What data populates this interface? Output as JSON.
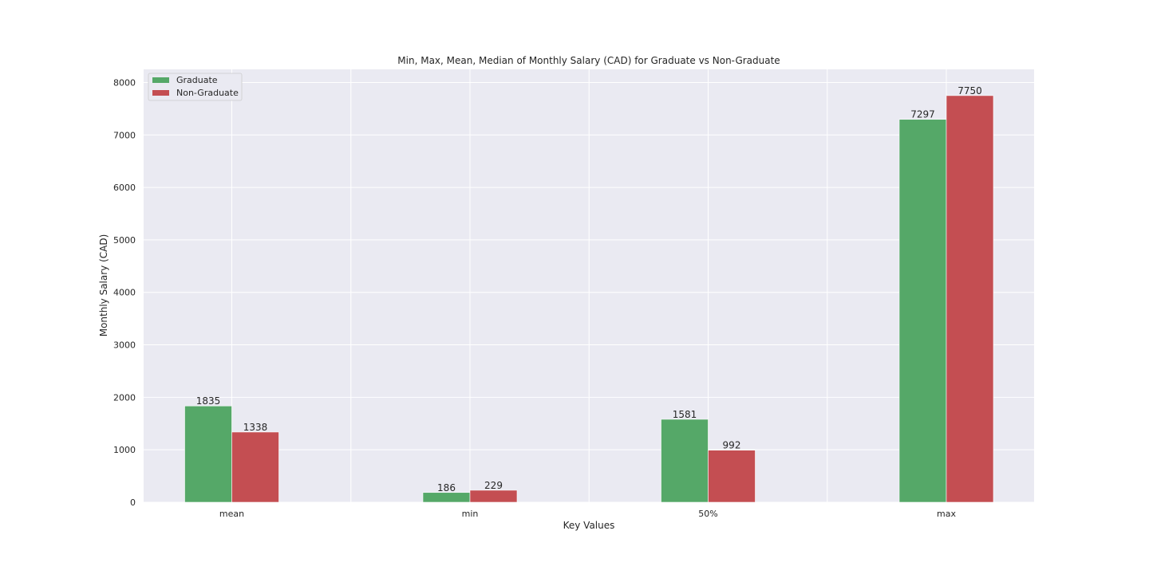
{
  "chart_data": {
    "type": "bar",
    "title": "Min, Max, Mean, Median of Monthly Salary (CAD) for Graduate vs Non-Graduate",
    "xlabel": "Key Values",
    "ylabel": "Monthly Salary (CAD)",
    "categories": [
      "mean",
      "min",
      "50%",
      "max"
    ],
    "series": [
      {
        "name": "Graduate",
        "values": [
          1835,
          186,
          1581,
          7297
        ],
        "color": "#55a868"
      },
      {
        "name": "Non-Graduate",
        "values": [
          1338,
          229,
          992,
          7750
        ],
        "color": "#c44e52"
      }
    ],
    "ylim": [
      0,
      8250
    ],
    "yticks": [
      0,
      1000,
      2000,
      3000,
      4000,
      5000,
      6000,
      7000,
      8000
    ],
    "ytick_labels": [
      "0",
      "1000",
      "2000",
      "3000",
      "4000",
      "5000",
      "6000",
      "7000",
      "8000"
    ],
    "data_labels": [
      [
        "1835",
        "186",
        "1581",
        "7297"
      ],
      [
        "1338",
        "229",
        "992",
        "7750"
      ]
    ],
    "grid": true,
    "legend_position": "top-left",
    "plot_background": "#eaeaf2",
    "grid_color": "#ffffff"
  }
}
